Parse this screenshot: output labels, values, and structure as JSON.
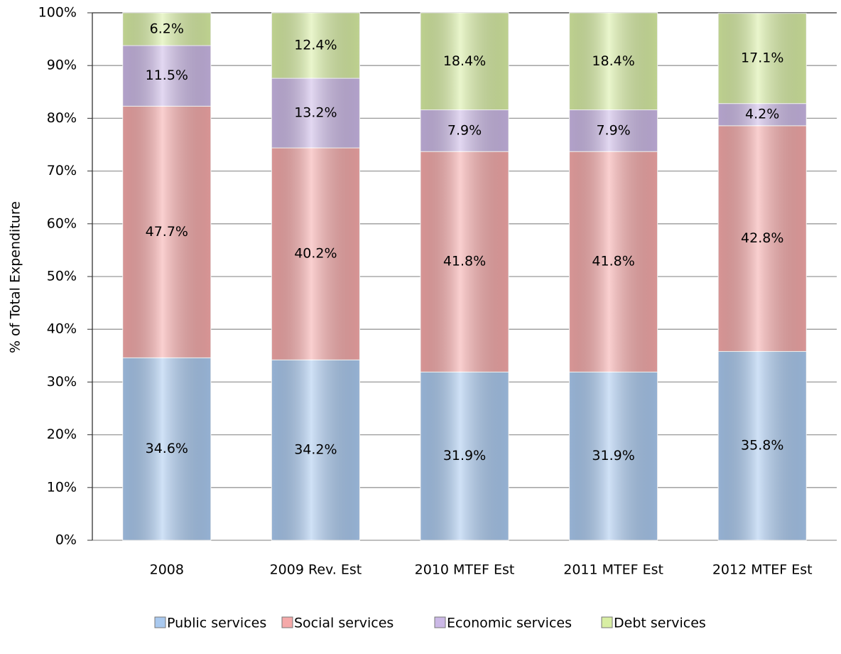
{
  "chart_data": {
    "type": "stacked_bar",
    "y_label": "% of Total Expenditure",
    "categories": [
      "2008",
      "2009 Rev. Est",
      "2010 MTEF  Est",
      "2011 MTEF  Est",
      "2012 MTEF  Est"
    ],
    "series": [
      {
        "name": "Public services",
        "color": "#a9c9ef",
        "values": [
          34.6,
          34.2,
          31.9,
          31.9,
          35.8
        ],
        "value_labels": [
          "34.6%",
          "34.2%",
          "31.9%",
          "31.9%",
          "35.8%"
        ]
      },
      {
        "name": "Social services",
        "color": "#f5a9a9",
        "values": [
          47.7,
          40.2,
          41.8,
          41.8,
          42.8
        ],
        "value_labels": [
          "47.7%",
          "40.2%",
          "41.8%",
          "41.8%",
          "42.8%"
        ]
      },
      {
        "name": "Economic services",
        "color": "#cbb8e6",
        "values": [
          11.5,
          13.2,
          7.9,
          7.9,
          4.2
        ],
        "value_labels": [
          "11.5%",
          "13.2%",
          "7.9%",
          "7.9%",
          "4.2%"
        ]
      },
      {
        "name": "Debt services",
        "color": "#d8eea3",
        "values": [
          6.2,
          12.4,
          18.4,
          18.4,
          17.1
        ],
        "value_labels": [
          "6.2%",
          "12.4%",
          "18.4%",
          "18.4%",
          "17.1%"
        ]
      }
    ],
    "ylim": [
      0,
      100
    ],
    "yticks": [
      {
        "value": 0,
        "label": "0%"
      },
      {
        "value": 10,
        "label": "10%"
      },
      {
        "value": 20,
        "label": "20%"
      },
      {
        "value": 30,
        "label": "30%"
      },
      {
        "value": 40,
        "label": "40%"
      },
      {
        "value": 50,
        "label": "50%"
      },
      {
        "value": 60,
        "label": "60%"
      },
      {
        "value": 70,
        "label": "70%"
      },
      {
        "value": 80,
        "label": "80%"
      },
      {
        "value": 90,
        "label": "90%"
      },
      {
        "value": 100,
        "label": "100%"
      }
    ],
    "grid": true,
    "legend": "bottom"
  }
}
